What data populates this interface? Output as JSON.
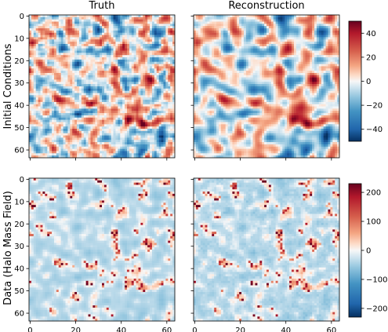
{
  "chart_data": {
    "type": "heatmap",
    "layout": "2x2 grid of heatmaps with one colorbar per row",
    "columns": [
      "Truth",
      "Reconstruction"
    ],
    "rows": [
      {
        "ylabel": "Initial Conditions",
        "colormap": "RdBu_r",
        "vmin": -50,
        "vmax": 50,
        "colorbar_ticks": [
          40,
          20,
          0,
          -20,
          -40
        ],
        "description": "Smooth Gaussian-like random field; reconstruction visually matches truth at larger scales"
      },
      {
        "ylabel": "Data (Halo Mass Field)",
        "colormap": "RdBu_r",
        "vmin": -230,
        "vmax": 230,
        "colorbar_ticks": [
          200,
          100,
          0,
          -100,
          -200
        ],
        "description": "Sparse field of mostly light-blue background with scattered red peaks; truth and reconstruction nearly identical"
      }
    ],
    "grid_size": 64,
    "x_ticks": [
      0,
      20,
      40,
      60
    ],
    "y_ticks": [
      0,
      10,
      20,
      30,
      40,
      50,
      60
    ],
    "axes": [
      {
        "row": 0,
        "col": 0,
        "title": "Truth",
        "show_x_ticklabels": false,
        "show_y_ticklabels": true
      },
      {
        "row": 0,
        "col": 1,
        "title": "Reconstruction",
        "show_x_ticklabels": false,
        "show_y_ticklabels": false
      },
      {
        "row": 1,
        "col": 0,
        "title": "",
        "show_x_ticklabels": true,
        "show_y_ticklabels": true
      },
      {
        "row": 1,
        "col": 1,
        "title": "",
        "show_x_ticklabels": true,
        "show_y_ticklabels": false
      }
    ]
  }
}
